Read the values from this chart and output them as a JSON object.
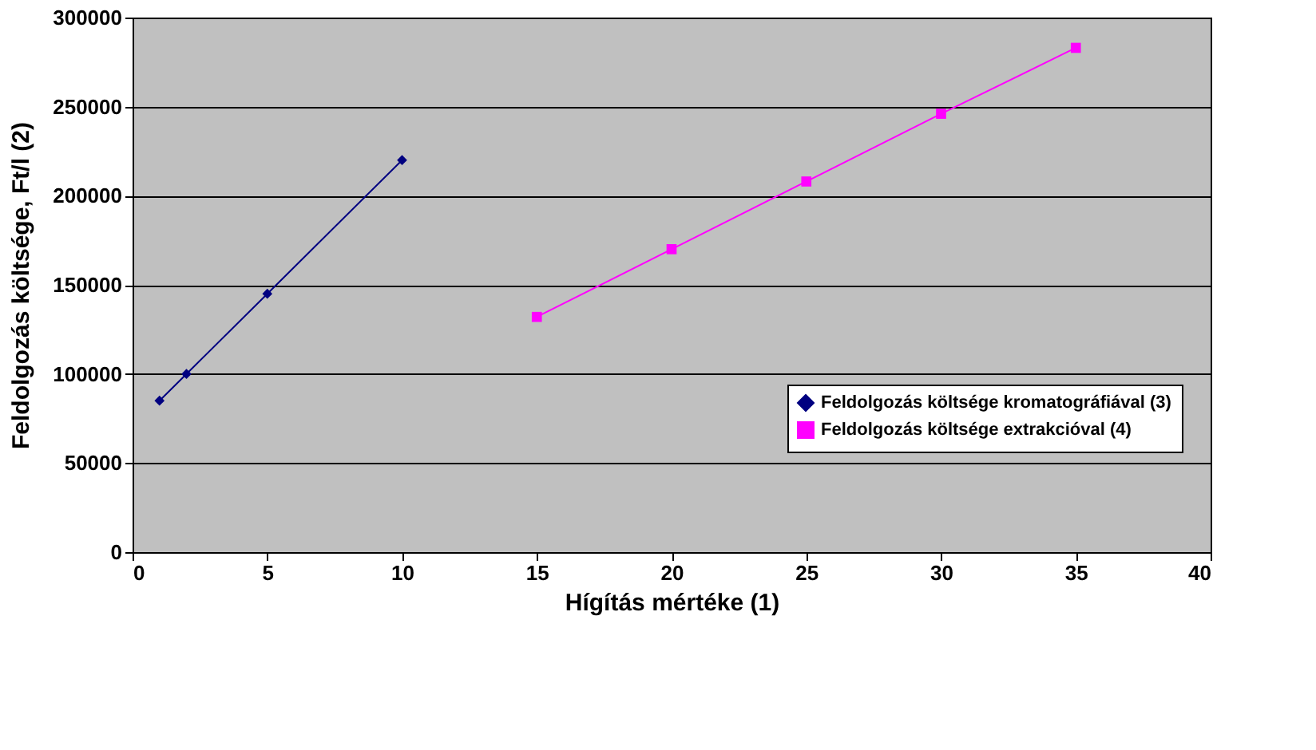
{
  "chart_data": {
    "type": "line",
    "xlabel": "Hígítás mértéke (1)",
    "ylabel": "Feldolgozás költsége, Ft/l (2)",
    "xlim": [
      0,
      40
    ],
    "xticks": [
      0,
      5,
      10,
      15,
      20,
      25,
      30,
      35,
      40
    ],
    "ylim": [
      0,
      300000
    ],
    "yticks": [
      0,
      50000,
      100000,
      150000,
      200000,
      250000,
      300000
    ],
    "grid": "y",
    "legend": "bottom right",
    "line_style": "solid",
    "series": [
      {
        "name": "Feldolgozás költsége kromatográfiával (3)",
        "color": "#000080",
        "marker": "diamond",
        "x": [
          1,
          2,
          5,
          10
        ],
        "values": [
          85000,
          100000,
          145000,
          220000
        ]
      },
      {
        "name": "Feldolgozás költsége extrakcióval (4)",
        "color": "#ff00ff",
        "marker": "square",
        "x": [
          15,
          20,
          25,
          30,
          35
        ],
        "values": [
          132000,
          170000,
          208000,
          246000,
          283000
        ]
      }
    ]
  }
}
